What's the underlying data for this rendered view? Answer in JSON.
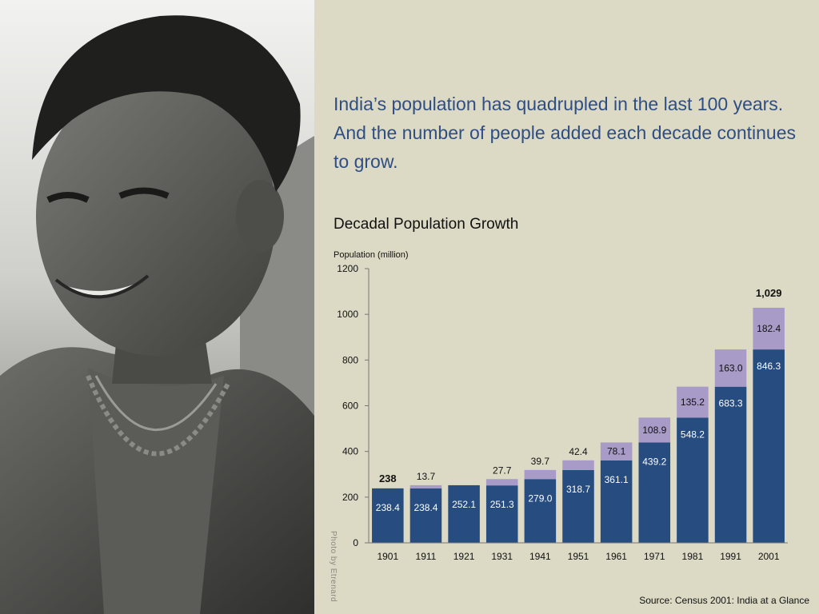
{
  "headline": "India’s population has quadrupled in the last 100 years. And the number of people added each decade continues to grow.",
  "photo_credit": "Photo by Etrenard",
  "source": "Source: Census 2001: India at a Glance",
  "colors": {
    "base": "#264c80",
    "added": "#a99bc8",
    "headline": "#2e4e84",
    "background": "#dcd9c4"
  },
  "chart_data": {
    "type": "bar",
    "stacked": true,
    "title": "Decadal Population Growth",
    "ylabel": "Population (million)",
    "xlabel": "",
    "ylim": [
      0,
      1200
    ],
    "yticks": [
      0,
      200,
      400,
      600,
      800,
      1000,
      1200
    ],
    "categories": [
      "1901",
      "1911",
      "1921",
      "1931",
      "1941",
      "1951",
      "1961",
      "1971",
      "1981",
      "1991",
      "2001"
    ],
    "series": [
      {
        "values": [
          238.4,
          238.4,
          252.1,
          251.3,
          279.0,
          318.7,
          361.1,
          439.2,
          548.2,
          683.3,
          846.3
        ],
        "labels": [
          "238.4",
          "238.4",
          "252.1",
          "251.3",
          "279.0",
          "318.7",
          "361.1",
          "439.2",
          "548.2",
          "683.3",
          "846.3"
        ]
      },
      {
        "values": [
          0,
          13.7,
          0,
          27.7,
          39.7,
          42.4,
          78.1,
          108.9,
          135.2,
          163.0,
          182.4
        ],
        "labels": [
          "",
          "13.7",
          "",
          "27.7",
          "39.7",
          "42.4",
          "78.1",
          "108.9",
          "135.2",
          "163.0",
          "182.4"
        ]
      }
    ],
    "annotations": [
      {
        "category": "1901",
        "text": "238",
        "value": 238
      },
      {
        "category": "2001",
        "text": "1,029",
        "value": 1029
      }
    ],
    "grid": false,
    "legend": "none"
  }
}
